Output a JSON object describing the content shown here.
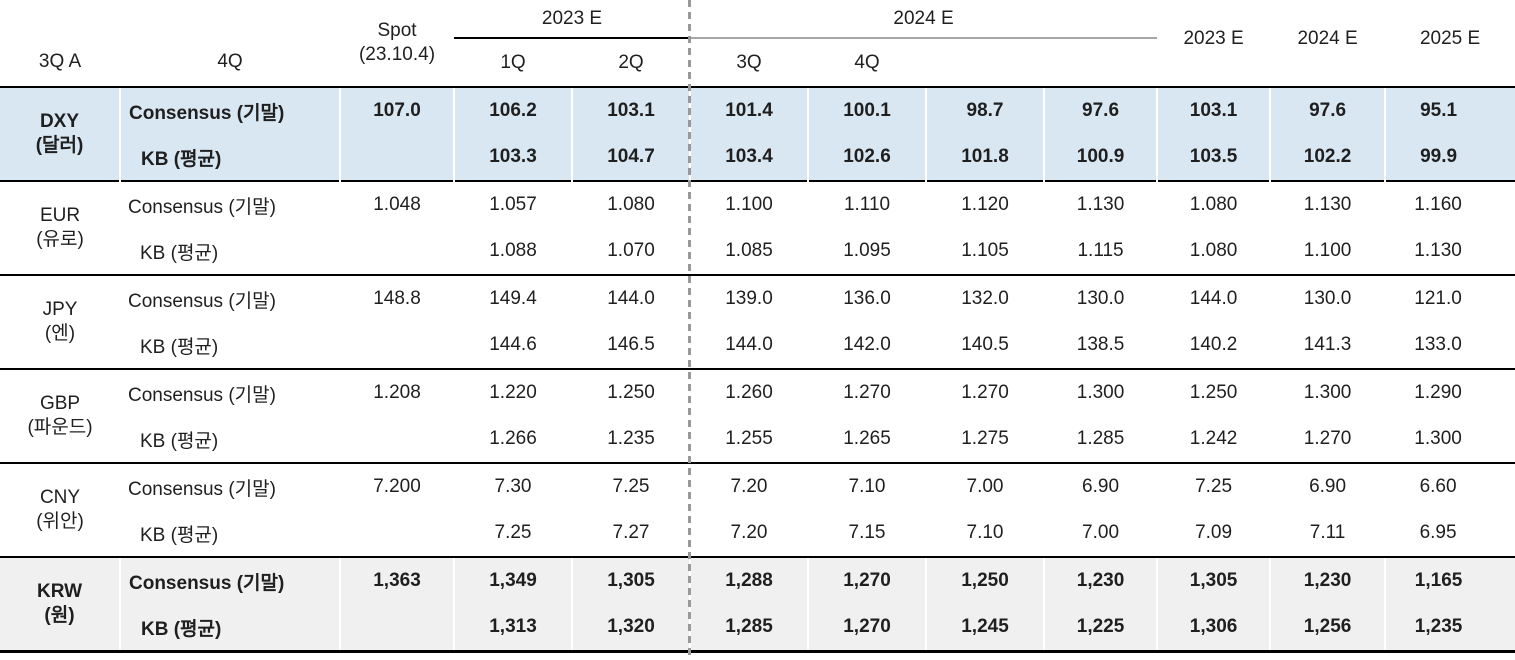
{
  "colors": {
    "highlight_blue": "#d9e7f3",
    "highlight_gray": "#f0f0f0",
    "line_black": "#000000",
    "line_gray": "#a6a6a6",
    "dashed_gray": "#999999",
    "text": "#1f1f1f"
  },
  "header": {
    "spot_label": "Spot",
    "spot_sub": "(23.10.4)",
    "groups": [
      {
        "label": "2023 E",
        "quarters": [
          "3Q A",
          "4Q"
        ]
      },
      {
        "label": "2024 E",
        "quarters": [
          "1Q",
          "2Q",
          "3Q",
          "4Q"
        ]
      }
    ],
    "annual": [
      "2023 E",
      "2024 E",
      "2025 E"
    ]
  },
  "rows": [
    {
      "code": "DXY",
      "name_kr": "(달러)",
      "highlight": "blue",
      "series": [
        {
          "label": "Consensus (기말)",
          "values": [
            "107.0",
            "106.2",
            "103.1",
            "101.4",
            "100.1",
            "98.7",
            "97.6",
            "103.1",
            "97.6",
            "95.1"
          ]
        },
        {
          "label": "KB (평균)",
          "values": [
            "",
            "103.3",
            "104.7",
            "103.4",
            "102.6",
            "101.8",
            "100.9",
            "103.5",
            "102.2",
            "99.9"
          ]
        }
      ]
    },
    {
      "code": "EUR",
      "name_kr": "(유로)",
      "highlight": null,
      "series": [
        {
          "label": "Consensus (기말)",
          "values": [
            "1.048",
            "1.057",
            "1.080",
            "1.100",
            "1.110",
            "1.120",
            "1.130",
            "1.080",
            "1.130",
            "1.160"
          ]
        },
        {
          "label": "KB (평균)",
          "values": [
            "",
            "1.088",
            "1.070",
            "1.085",
            "1.095",
            "1.105",
            "1.115",
            "1.080",
            "1.100",
            "1.130"
          ]
        }
      ]
    },
    {
      "code": "JPY",
      "name_kr": "(엔)",
      "highlight": null,
      "series": [
        {
          "label": "Consensus (기말)",
          "values": [
            "148.8",
            "149.4",
            "144.0",
            "139.0",
            "136.0",
            "132.0",
            "130.0",
            "144.0",
            "130.0",
            "121.0"
          ]
        },
        {
          "label": "KB (평균)",
          "values": [
            "",
            "144.6",
            "146.5",
            "144.0",
            "142.0",
            "140.5",
            "138.5",
            "140.2",
            "141.3",
            "133.0"
          ]
        }
      ]
    },
    {
      "code": "GBP",
      "name_kr": "(파운드)",
      "highlight": null,
      "series": [
        {
          "label": "Consensus (기말)",
          "values": [
            "1.208",
            "1.220",
            "1.250",
            "1.260",
            "1.270",
            "1.270",
            "1.300",
            "1.250",
            "1.300",
            "1.290"
          ]
        },
        {
          "label": "KB (평균)",
          "values": [
            "",
            "1.266",
            "1.235",
            "1.255",
            "1.265",
            "1.275",
            "1.285",
            "1.242",
            "1.270",
            "1.300"
          ]
        }
      ]
    },
    {
      "code": "CNY",
      "name_kr": "(위안)",
      "highlight": null,
      "series": [
        {
          "label": "Consensus (기말)",
          "values": [
            "7.200",
            "7.30",
            "7.25",
            "7.20",
            "7.10",
            "7.00",
            "6.90",
            "7.25",
            "6.90",
            "6.60"
          ]
        },
        {
          "label": "KB (평균)",
          "values": [
            "",
            "7.25",
            "7.27",
            "7.20",
            "7.15",
            "7.10",
            "7.00",
            "7.09",
            "7.11",
            "6.95"
          ]
        }
      ]
    },
    {
      "code": "KRW",
      "name_kr": "(원)",
      "highlight": "gray",
      "series": [
        {
          "label": "Consensus (기말)",
          "values": [
            "1,363",
            "1,349",
            "1,305",
            "1,288",
            "1,270",
            "1,250",
            "1,230",
            "1,305",
            "1,230",
            "1,165"
          ]
        },
        {
          "label": "KB (평균)",
          "values": [
            "",
            "1,313",
            "1,320",
            "1,285",
            "1,270",
            "1,245",
            "1,225",
            "1,306",
            "1,256",
            "1,235"
          ]
        }
      ]
    }
  ]
}
